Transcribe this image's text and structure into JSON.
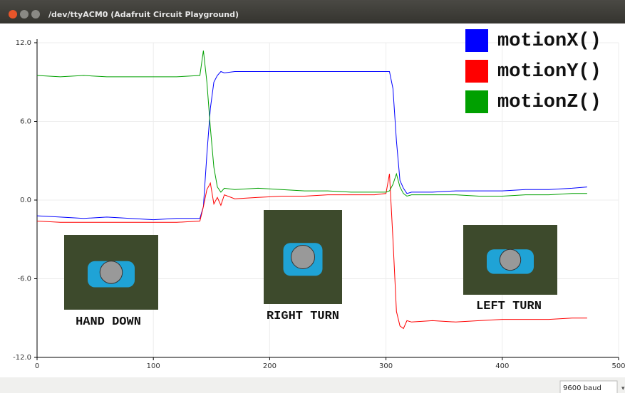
{
  "window": {
    "title": "/dev/ttyACM0 (Adafruit Circuit Playground)"
  },
  "chart_data": {
    "type": "line",
    "x": [
      0,
      20,
      40,
      60,
      80,
      100,
      120,
      140,
      143,
      146,
      149,
      152,
      155,
      158,
      161,
      170,
      190,
      210,
      230,
      250,
      270,
      290,
      300,
      303,
      306,
      309,
      312,
      315,
      318,
      322,
      340,
      360,
      380,
      400,
      420,
      440,
      460,
      473
    ],
    "series": [
      {
        "name": "motionX()",
        "color": "#0000ff",
        "values": [
          -1.2,
          -1.3,
          -1.4,
          -1.3,
          -1.4,
          -1.5,
          -1.4,
          -1.4,
          -0.5,
          3.5,
          7.0,
          9.0,
          9.5,
          9.8,
          9.7,
          9.8,
          9.8,
          9.8,
          9.8,
          9.8,
          9.8,
          9.8,
          9.8,
          9.8,
          8.5,
          4.5,
          1.5,
          0.9,
          0.5,
          0.6,
          0.6,
          0.7,
          0.7,
          0.7,
          0.8,
          0.8,
          0.9,
          1.0
        ]
      },
      {
        "name": "motionY()",
        "color": "#ff0000",
        "values": [
          -1.6,
          -1.7,
          -1.7,
          -1.7,
          -1.7,
          -1.7,
          -1.7,
          -1.6,
          -0.5,
          0.8,
          1.3,
          -0.3,
          0.2,
          -0.4,
          0.4,
          0.1,
          0.2,
          0.3,
          0.3,
          0.4,
          0.4,
          0.4,
          0.5,
          2.0,
          -3,
          -8.5,
          -9.6,
          -9.8,
          -9.2,
          -9.3,
          -9.2,
          -9.3,
          -9.2,
          -9.1,
          -9.1,
          -9.1,
          -9.0,
          -9.0
        ]
      },
      {
        "name": "motionZ()",
        "color": "#00a000",
        "values": [
          9.5,
          9.4,
          9.5,
          9.4,
          9.4,
          9.4,
          9.4,
          9.5,
          11.4,
          9.0,
          5.5,
          2.5,
          1.0,
          0.6,
          0.9,
          0.8,
          0.9,
          0.8,
          0.7,
          0.7,
          0.6,
          0.6,
          0.6,
          0.7,
          1.2,
          2.0,
          1.0,
          0.5,
          0.3,
          0.4,
          0.4,
          0.4,
          0.3,
          0.3,
          0.4,
          0.4,
          0.5,
          0.5
        ]
      }
    ],
    "xlim": [
      0,
      500
    ],
    "xticks": [
      0,
      100,
      200,
      300,
      400,
      500
    ],
    "ylim": [
      -12,
      12
    ],
    "yticks": [
      {
        "value": 12,
        "label": "12.0"
      },
      {
        "value": 6,
        "label": "6.0"
      },
      {
        "value": 0,
        "label": "0.0"
      },
      {
        "value": -6,
        "label": "-6.0"
      },
      {
        "value": -12,
        "label": "-12.0"
      }
    ],
    "grid": true,
    "legend": "upper right",
    "annotations": [
      "HAND DOWN",
      "RIGHT TURN",
      "LEFT TURN"
    ]
  },
  "footer": {
    "baud": "9600 baud"
  }
}
